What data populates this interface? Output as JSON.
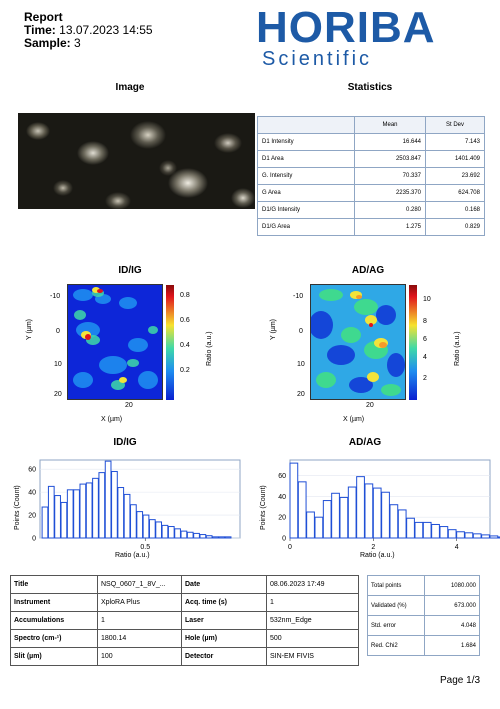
{
  "header": {
    "report_label": "Report",
    "time_label": "Time:",
    "time_value": "13.07.2023  14:55",
    "sample_label": "Sample:",
    "sample_value": "3"
  },
  "logo": {
    "brand": "HORIBA",
    "sub": "Scientific",
    "color": "#1d5aa6"
  },
  "sections": {
    "image_title": "Image",
    "statistics_title": "Statistics"
  },
  "statistics": {
    "columns": [
      "",
      "Mean",
      "St Dev"
    ],
    "rows": [
      {
        "label": "D1 Intensity",
        "mean": "16.644",
        "stdev": "7.143"
      },
      {
        "label": "D1 Area",
        "mean": "2503.847",
        "stdev": "1401.409"
      },
      {
        "label": "G. Intensity",
        "mean": "70.337",
        "stdev": "23.692"
      },
      {
        "label": "G Area",
        "mean": "2235.370",
        "stdev": "624.708"
      },
      {
        "label": "D1/G Intensity",
        "mean": "0.280",
        "stdev": "0.168"
      },
      {
        "label": "D1/G Area",
        "mean": "1.275",
        "stdev": "0.829"
      }
    ]
  },
  "maps": [
    {
      "title": "ID/IG",
      "ylabel": "Y (µm)",
      "xlabel": "X (µm)",
      "colorbar_label": "Ratio (a.u.)",
      "y_ticks": [
        "-10",
        "0",
        "10",
        "20"
      ],
      "x_ticks": [
        "20"
      ],
      "colorbar_ticks": [
        "0.8",
        "0.6",
        "0.4",
        "0.2"
      ]
    },
    {
      "title": "AD/AG",
      "ylabel": "Y (µm)",
      "xlabel": "X (µm)",
      "colorbar_label": "Ratio (a.u.)",
      "y_ticks": [
        "-10",
        "0",
        "10",
        "20"
      ],
      "x_ticks": [
        "20"
      ],
      "colorbar_ticks": [
        "10",
        "8",
        "6",
        "4",
        "2"
      ]
    }
  ],
  "chart_data": [
    {
      "type": "bar",
      "title": "ID/IG",
      "xlabel": "Ratio (a.u.)",
      "ylabel": "Points (Count)",
      "xlim": [
        0,
        0.95
      ],
      "ylim": [
        0,
        68
      ],
      "y_ticks": [
        0,
        20,
        40,
        60
      ],
      "x_ticks": [
        0.5
      ],
      "bin_width": 0.03,
      "x_start": 0.01,
      "values": [
        27,
        45,
        37,
        31,
        42,
        42,
        47,
        48,
        52,
        57,
        67,
        58,
        44,
        38,
        29,
        23,
        20,
        16,
        14,
        11,
        10,
        8,
        6,
        5,
        4,
        3,
        2,
        1,
        1,
        1
      ]
    },
    {
      "type": "bar",
      "title": "AD/AG",
      "xlabel": "Ratio (a.u.)",
      "ylabel": "Points (Count)",
      "xlim": [
        0,
        4.8
      ],
      "ylim": [
        0,
        75
      ],
      "y_ticks": [
        0,
        20,
        40,
        60
      ],
      "x_ticks": [
        0,
        2,
        4
      ],
      "bin_width": 0.2,
      "x_start": 0.0,
      "values": [
        72,
        54,
        25,
        20,
        36,
        43,
        39,
        49,
        59,
        52,
        48,
        44,
        32,
        27,
        19,
        15,
        15,
        13,
        11,
        8,
        6,
        5,
        4,
        3,
        2,
        1
      ]
    }
  ],
  "info_table": [
    {
      "k1": "Title",
      "v1": "NSQ_0607_1_8V_...",
      "k2": "Date",
      "v2": "08.06.2023 17:49"
    },
    {
      "k1": "Instrument",
      "v1": "XploRA Plus",
      "k2": "Acq. time (s)",
      "v2": "1"
    },
    {
      "k1": "Accumulations",
      "v1": "1",
      "k2": "Laser",
      "v2": "532nm_Edge"
    },
    {
      "k1": "Spectro (cm-¹)",
      "v1": "1800.14",
      "k2": "Hole (µm)",
      "v2": "500"
    },
    {
      "k1": "Slit (µm)",
      "v1": "100",
      "k2": "Detector",
      "v2": "SIN-EM FIVIS"
    }
  ],
  "fit_table": [
    {
      "label": "Total points",
      "value": "1080.000"
    },
    {
      "label": "Validated (%)",
      "value": "673.000"
    },
    {
      "label": "Std. error",
      "value": "4.048"
    },
    {
      "label": "Red. Chi2",
      "value": "1.684"
    }
  ],
  "footer": {
    "page": "Page 1/3"
  },
  "colors": {
    "bar_stroke": "#1f4fd6",
    "frame": "#8fa6c4",
    "map_low": "#0a1fd0",
    "map_high": "#e0141c"
  }
}
